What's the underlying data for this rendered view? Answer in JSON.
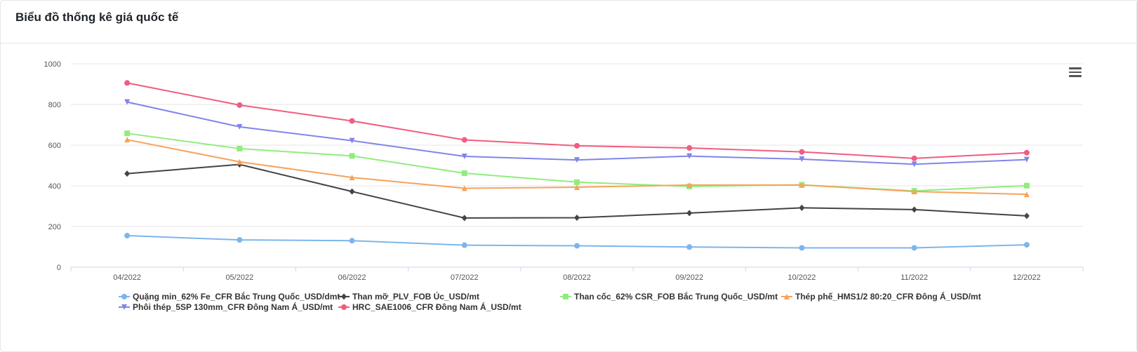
{
  "header": {
    "title": "Biểu đồ thống kê giá quốc tế"
  },
  "toolbar": {
    "menu_icon": "hamburger-menu-icon"
  },
  "chart_data": {
    "type": "line",
    "categories": [
      "04/2022",
      "05/2022",
      "06/2022",
      "07/2022",
      "08/2022",
      "09/2022",
      "10/2022",
      "11/2022",
      "12/2022"
    ],
    "ylim": [
      0,
      1000
    ],
    "yticks": [
      "0",
      "200",
      "400",
      "600",
      "800",
      "1000"
    ],
    "grid": true,
    "legend_position": "bottom",
    "series": [
      {
        "name": "Quặng min_62% Fe_CFR Bắc Trung Quốc_USD/dmt",
        "color": "#7cb5ec",
        "marker": "circle",
        "values": [
          155,
          134,
          130,
          108,
          105,
          99,
          95,
          95,
          110
        ]
      },
      {
        "name": "Than mỡ_PLV_FOB Úc_USD/mt",
        "color": "#434348",
        "marker": "diamond",
        "values": [
          460,
          505,
          372,
          242,
          243,
          266,
          292,
          283,
          252
        ]
      },
      {
        "name": "Than cốc_62% CSR_FOB Bắc Trung Quốc_USD/mt",
        "color": "#90ed7d",
        "marker": "square",
        "values": [
          658,
          583,
          547,
          462,
          418,
          397,
          405,
          375,
          401
        ]
      },
      {
        "name": "Thép phế_HMS1/2 80:20_CFR Đông Á_USD/mt",
        "color": "#f7a35c",
        "marker": "triangle",
        "values": [
          627,
          518,
          441,
          388,
          393,
          404,
          404,
          372,
          358
        ]
      },
      {
        "name": "Phôi thép_5SP 130mm_CFR Đông Nam Á_USD/mt",
        "color": "#8085e9",
        "marker": "triangle-down",
        "values": [
          812,
          690,
          622,
          545,
          527,
          546,
          531,
          506,
          529
        ]
      },
      {
        "name": "HRC_SAE1006_CFR Đông Nam Á_USD/mt",
        "color": "#f15c80",
        "marker": "circle",
        "values": [
          906,
          797,
          719,
          626,
          597,
          586,
          567,
          535,
          563
        ]
      }
    ]
  }
}
